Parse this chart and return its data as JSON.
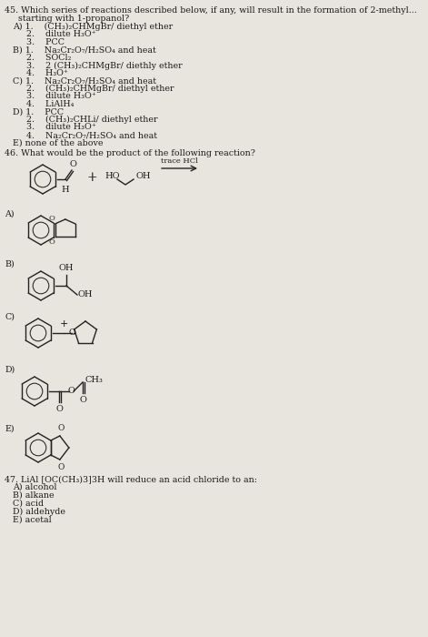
{
  "bg_color": "#d8d4ce",
  "paper_color": "#e8e5df",
  "text_color": "#1a1a1a",
  "q45_header": "45. Which series of reactions described below, if any, will result in the formation of 2-methyl...",
  "q45_intro": "     starting with 1-propanol?",
  "q45_lines": [
    "A) 1.    (CH₃)₂CHMgBr/ diethyl ether",
    "     2.    dilute H₃O⁺",
    "     3.    PCC",
    "B) 1.    Na₂Cr₂O₇/H₂SO₄ and heat",
    "     2.    SOCl₂",
    "     3.    2 (CH₃)₂CHMgBr/ diethly ether",
    "     4.    H₃O⁺",
    "C) 1.    Na₂Cr₂O₇/H₂SO₄ and heat",
    "     2.    (CH₃)₂CHMgBr/ diethyl ether",
    "     3.    dilute H₃O⁺",
    "     4.    LiAlH₄",
    "D) 1.    PCC",
    "     2.    (CH₃)₂CHLi/ diethyl ether",
    "     3.    dilute H₃O⁺",
    "     4.    Na₂Cr₂O₇/H₂SO₄ and heat",
    "E) none of the above"
  ],
  "q46_header": "46. What would be the product of the following reaction?",
  "q47_header": "47. LiAl [OC(CH₃)3]3H will reduce an acid chloride to an:",
  "q47_options": [
    "A) alcohol",
    "B) alkane",
    "C) acid",
    "D) aldehyde",
    "E) acetal"
  ]
}
